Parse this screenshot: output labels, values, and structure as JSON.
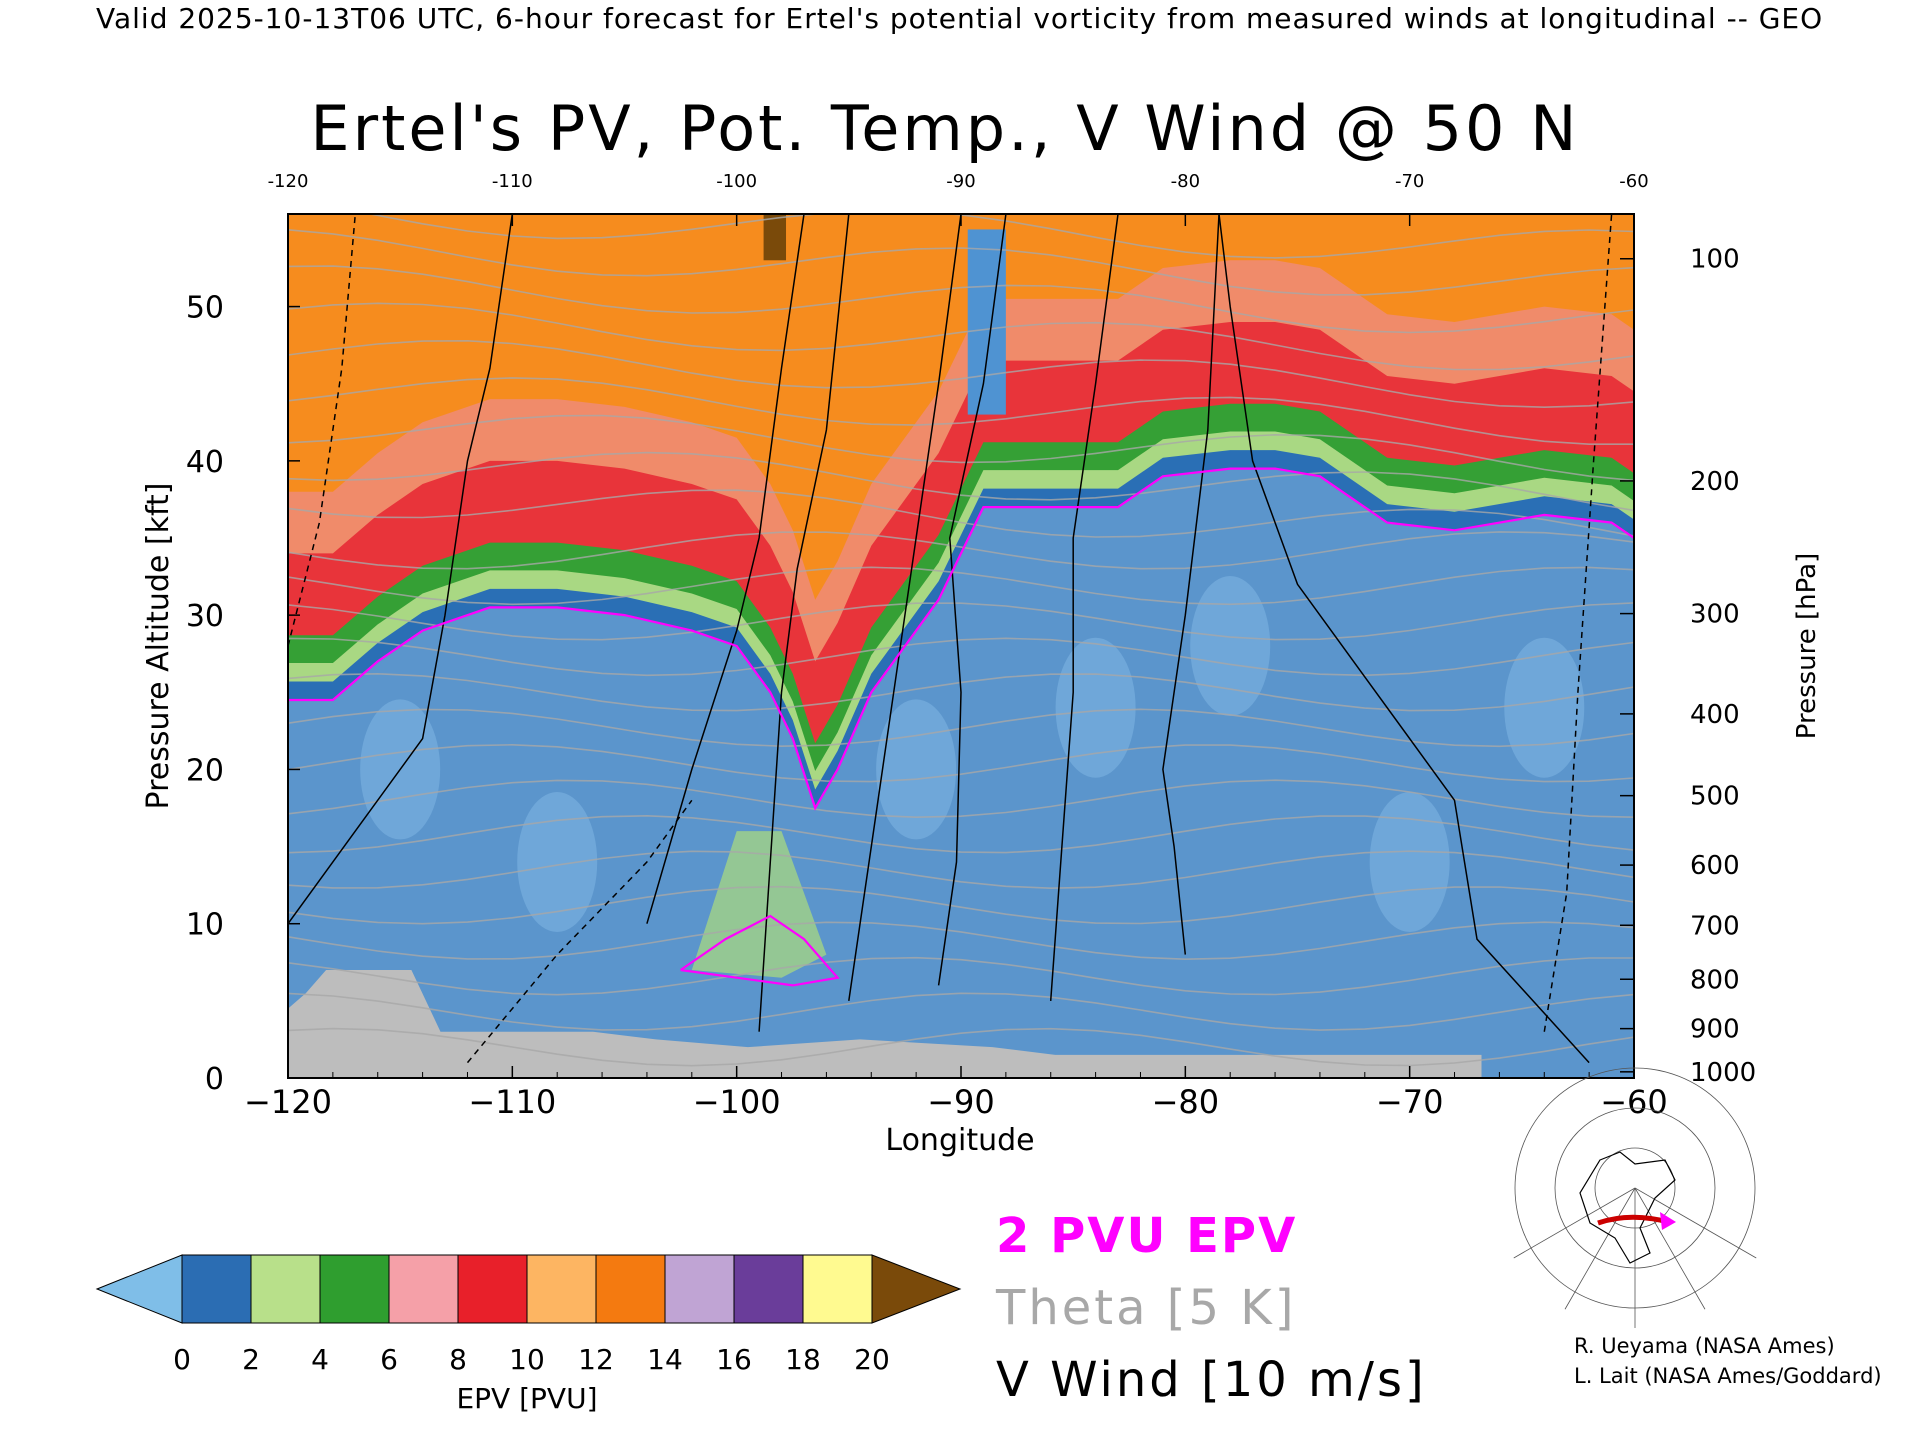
{
  "header": {
    "valid_line": "Valid 2025-10-13T06 UTC, 6-hour forecast for Ertel's potential vorticity from measured winds at longitudinal -- GEO"
  },
  "chart_data": {
    "type": "heatmap",
    "title": "Ertel's PV, Pot. Temp., V Wind @ 50 N",
    "xlabel": "Longitude",
    "ylabel": "Pressure Altitude [kft]",
    "y2label": "Pressure [hPa]",
    "xlim": [
      -120,
      -60
    ],
    "ylim": [
      0,
      56
    ],
    "x_ticks": [
      -120,
      -110,
      -100,
      -90,
      -80,
      -70,
      -60
    ],
    "x_tick_labels": [
      "−120",
      "−110",
      "−100",
      "−90",
      "−80",
      "−70",
      "−60"
    ],
    "x_top_tick_labels": [
      "-120",
      "-110",
      "-100",
      "-90",
      "-80",
      "-70",
      "-60"
    ],
    "y_ticks": [
      0,
      10,
      20,
      30,
      40,
      50
    ],
    "y_tick_labels": [
      "0",
      "10",
      "20",
      "30",
      "40",
      "50"
    ],
    "pressure_levels": [
      {
        "hpa": 100,
        "kft": 53.1,
        "label": "100"
      },
      {
        "hpa": 200,
        "kft": 38.7,
        "label": "200"
      },
      {
        "hpa": 300,
        "kft": 30.1,
        "label": "300"
      },
      {
        "hpa": 400,
        "kft": 23.6,
        "label": "400"
      },
      {
        "hpa": 500,
        "kft": 18.3,
        "label": "500"
      },
      {
        "hpa": 600,
        "kft": 13.8,
        "label": "600"
      },
      {
        "hpa": 700,
        "kft": 9.9,
        "label": "700"
      },
      {
        "hpa": 800,
        "kft": 6.4,
        "label": "800"
      },
      {
        "hpa": 900,
        "kft": 3.2,
        "label": "900"
      },
      {
        "hpa": 1000,
        "kft": 0.4,
        "label": "1000"
      }
    ],
    "tropopause_kft": [
      [
        -120,
        24.5
      ],
      [
        -118,
        24.5
      ],
      [
        -116,
        27
      ],
      [
        -114,
        29
      ],
      [
        -111,
        30.5
      ],
      [
        -108,
        30.5
      ],
      [
        -105,
        30
      ],
      [
        -102,
        29
      ],
      [
        -100,
        28
      ],
      [
        -98.5,
        25
      ],
      [
        -97.5,
        22
      ],
      [
        -96.5,
        17.5
      ],
      [
        -95.5,
        20
      ],
      [
        -94,
        25
      ],
      [
        -91,
        31
      ],
      [
        -89,
        37
      ],
      [
        -86,
        37
      ],
      [
        -83,
        37
      ],
      [
        -81,
        39
      ],
      [
        -78,
        39.5
      ],
      [
        -76,
        39.5
      ],
      [
        -74,
        39
      ],
      [
        -71,
        36
      ],
      [
        -68,
        35.5
      ],
      [
        -64,
        36.5
      ],
      [
        -61,
        36
      ],
      [
        -60,
        35
      ]
    ],
    "terrain_kft": [
      [
        -120,
        4.5
      ],
      [
        -119.2,
        5.5
      ],
      [
        -118.3,
        7
      ],
      [
        -114.5,
        7
      ],
      [
        -113.2,
        3
      ],
      [
        -106.4,
        3
      ],
      [
        -103.6,
        2.5
      ],
      [
        -99.5,
        2
      ],
      [
        -94.5,
        2.5
      ],
      [
        -88.6,
        2
      ],
      [
        -85.8,
        1.5
      ],
      [
        -81,
        1.5
      ],
      [
        -73.5,
        1.5
      ],
      [
        -66.8,
        1.5
      ],
      [
        -66.8,
        0
      ],
      [
        -120,
        0
      ]
    ],
    "colorbar": {
      "label": "EPV [PVU]",
      "ticks": [
        "0",
        "2",
        "4",
        "6",
        "8",
        "10",
        "12",
        "14",
        "16",
        "18",
        "20"
      ],
      "colors": [
        "#7fbee8",
        "#2b6db3",
        "#b8e08a",
        "#2f9e2f",
        "#f5a0a8",
        "#e8202a",
        "#fdb562",
        "#f47a10",
        "#c0a4d4",
        "#6a3d9a",
        "#fffa90",
        "#7a4a0a"
      ]
    },
    "legend": {
      "epv_contour": "2 PVU EPV",
      "theta": "Theta [5 K]",
      "vwind": "V Wind [10 m/s]"
    },
    "colors": {
      "epv_contour": "#ff00ff",
      "theta": "#a8a8a8",
      "vwind": "#000000",
      "terrain": "#bdbdbd"
    }
  },
  "credits": {
    "line1": "R. Ueyama (NASA Ames)",
    "line2": "L. Lait (NASA Ames/Goddard)"
  },
  "inset_map": {
    "region": "North America polar stereographic",
    "highlight_color": "#cc0000"
  }
}
